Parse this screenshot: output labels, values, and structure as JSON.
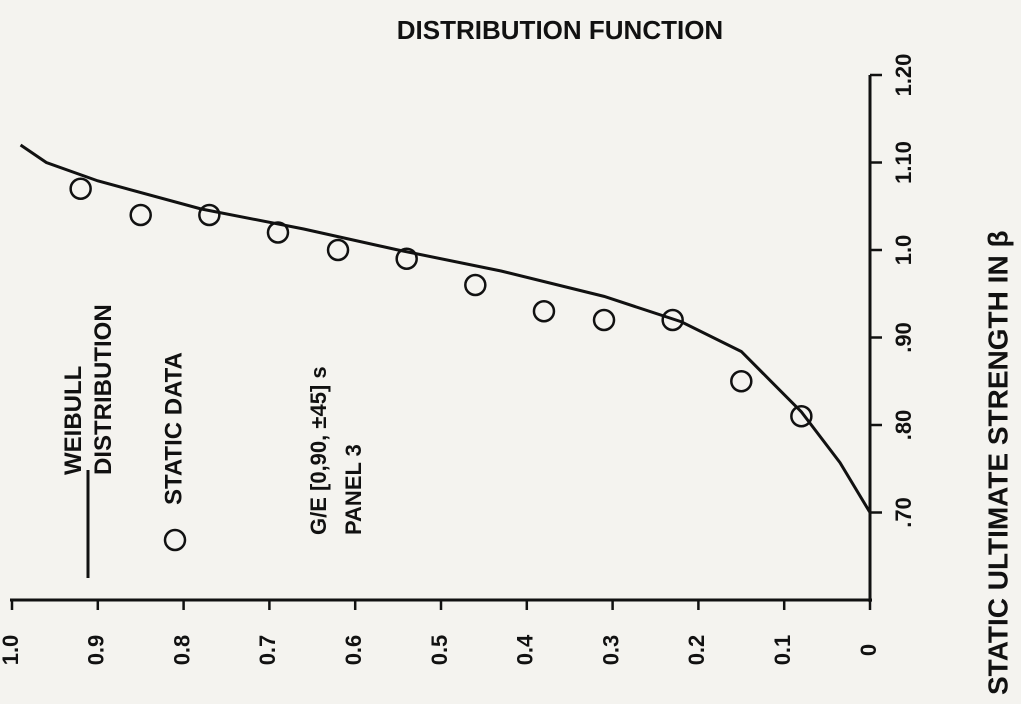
{
  "chart_data": {
    "type": "line",
    "title": "DISTRIBUTION FUNCTION",
    "x_label": "STATIC ULTIMATE STRENGTH IN β",
    "annotations": [
      "G/E [0,90, ±45] s",
      "PANEL 3"
    ],
    "xlim": [
      0.6,
      1.2
    ],
    "xticks": [
      {
        "value": 0.7,
        "label": ".70"
      },
      {
        "value": 0.8,
        "label": ".80"
      },
      {
        "value": 0.9,
        "label": ".90"
      },
      {
        "value": 1,
        "label": "1.0"
      },
      {
        "value": 1.1,
        "label": "1.10"
      },
      {
        "value": 1.2,
        "label": "1.20"
      }
    ],
    "ylim": [
      0,
      1
    ],
    "yticks": [
      {
        "value": 1,
        "label": "1.0"
      },
      0.9,
      0.8,
      0.7,
      0.6,
      0.5,
      0.4,
      0.3,
      0.2,
      0.1,
      0
    ],
    "color": "#111111",
    "series": [
      {
        "name": "WEIBULL DISTRIBUTION",
        "type": "line",
        "x": [
          0.7,
          0.757,
          0.815,
          0.884,
          0.918,
          0.947,
          0.976,
          1.0,
          1.024,
          1.047,
          1.079,
          1.1,
          1.12
        ],
        "values": [
          0,
          0.035,
          0.08,
          0.15,
          0.22,
          0.31,
          0.43,
          0.55,
          0.66,
          0.78,
          0.9,
          0.96,
          0.99
        ]
      },
      {
        "name": "STATIC DATA",
        "type": "scatter",
        "x": [
          1.07,
          1.04,
          1.04,
          1.02,
          1.0,
          0.99,
          0.96,
          0.93,
          0.92,
          0.92,
          0.85,
          0.81
        ],
        "values": [
          0.92,
          0.85,
          0.77,
          0.69,
          0.62,
          0.54,
          0.46,
          0.38,
          0.31,
          0.23,
          0.15,
          0.08
        ]
      }
    ]
  }
}
